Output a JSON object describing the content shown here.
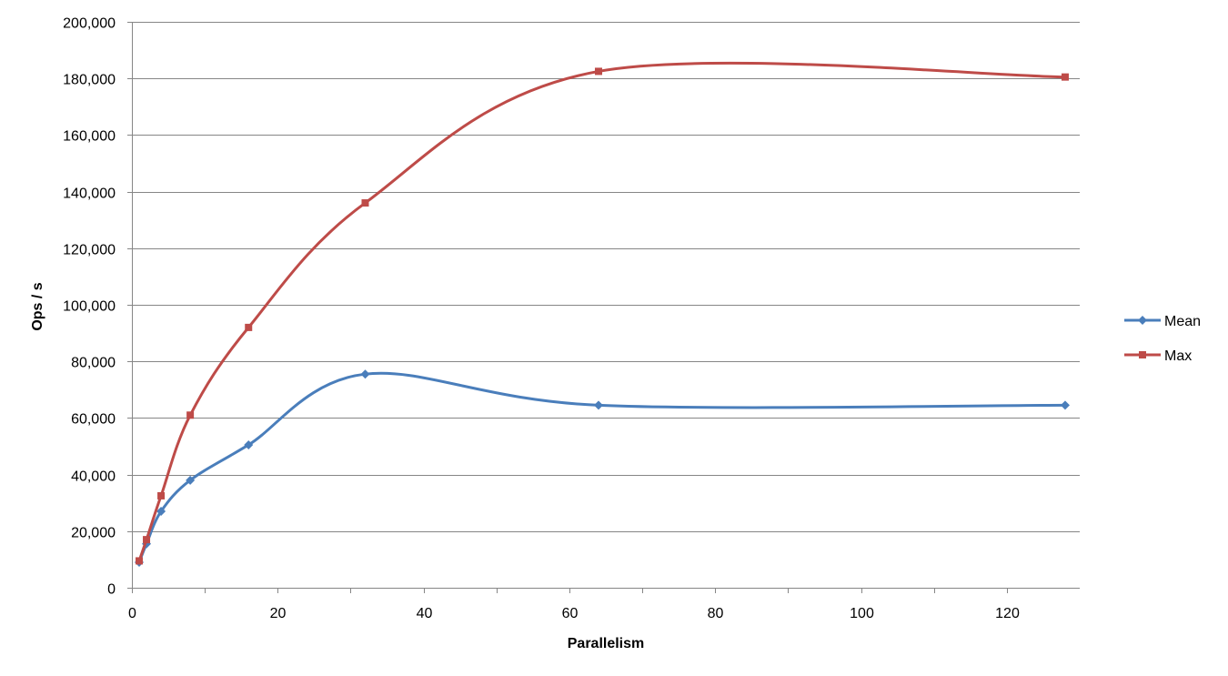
{
  "chart_data": {
    "type": "line",
    "smooth": true,
    "xlabel": "Parallelism",
    "ylabel": "Ops / s",
    "xlim": [
      0,
      130
    ],
    "ylim": [
      0,
      200000
    ],
    "x_ticks": [
      0,
      20,
      40,
      60,
      80,
      100,
      120
    ],
    "x_tick_labels": [
      "0",
      "20",
      "40",
      "60",
      "80",
      "100",
      "120"
    ],
    "y_ticks": [
      0,
      20000,
      40000,
      60000,
      80000,
      100000,
      120000,
      140000,
      160000,
      180000,
      200000
    ],
    "y_tick_labels": [
      "0",
      "20,000",
      "40,000",
      "60,000",
      "80,000",
      "100,000",
      "120,000",
      "140,000",
      "160,000",
      "180,000",
      "200,000"
    ],
    "grid": {
      "horizontal": true,
      "vertical": false
    },
    "legend_position": "right",
    "x": [
      1,
      2,
      4,
      8,
      16,
      32,
      64,
      128
    ],
    "series": [
      {
        "name": "Mean",
        "color": "#4a7ebb",
        "marker": "diamond",
        "values": [
          9000,
          15500,
          27000,
          38000,
          50500,
          75500,
          64500,
          64500
        ]
      },
      {
        "name": "Max",
        "color": "#be4b48",
        "marker": "square",
        "values": [
          9500,
          17000,
          32500,
          61000,
          92000,
          136000,
          182500,
          180500
        ]
      }
    ]
  }
}
